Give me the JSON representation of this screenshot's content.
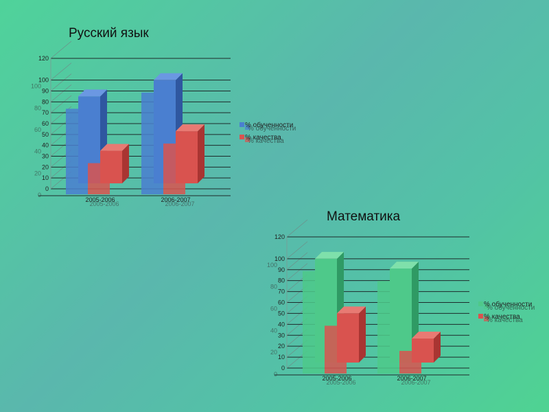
{
  "colors": {
    "blue": "#4a7fd0",
    "blue_side": "#2f57a0",
    "blue_top": "#6b98e2",
    "red": "#d9534f",
    "red_side": "#a93532",
    "red_top": "#e87a73",
    "green": "#4ec98a",
    "green_side": "#2f9a64",
    "green_top": "#7fe0ab"
  },
  "chart_data": [
    {
      "type": "bar",
      "title": "Русский язык",
      "categories": [
        "2005-2006",
        "2006-2007"
      ],
      "ylim": [
        0,
        120
      ],
      "ticks": [
        0,
        10,
        20,
        30,
        40,
        50,
        60,
        70,
        80,
        90,
        100,
        120
      ],
      "ghost_ticks": [
        0,
        20,
        40,
        60,
        80,
        100
      ],
      "series": [
        {
          "name": "% обученности",
          "values": [
            85,
            100
          ]
        },
        {
          "name": "% качества",
          "values": [
            35,
            53
          ]
        }
      ],
      "grid": true,
      "legend": "right"
    },
    {
      "type": "bar",
      "title": "Математика",
      "categories": [
        "2005-2006",
        "2006-2007"
      ],
      "ylim": [
        0,
        120
      ],
      "ticks": [
        0,
        10,
        20,
        30,
        40,
        50,
        60,
        70,
        80,
        90,
        100,
        120
      ],
      "ghost_ticks": [
        0,
        20,
        40,
        60,
        80,
        100
      ],
      "series": [
        {
          "name": "% обученности",
          "values": [
            100,
            91
          ]
        },
        {
          "name": "% качества",
          "values": [
            50,
            27
          ]
        }
      ],
      "grid": true,
      "legend": "right"
    }
  ]
}
